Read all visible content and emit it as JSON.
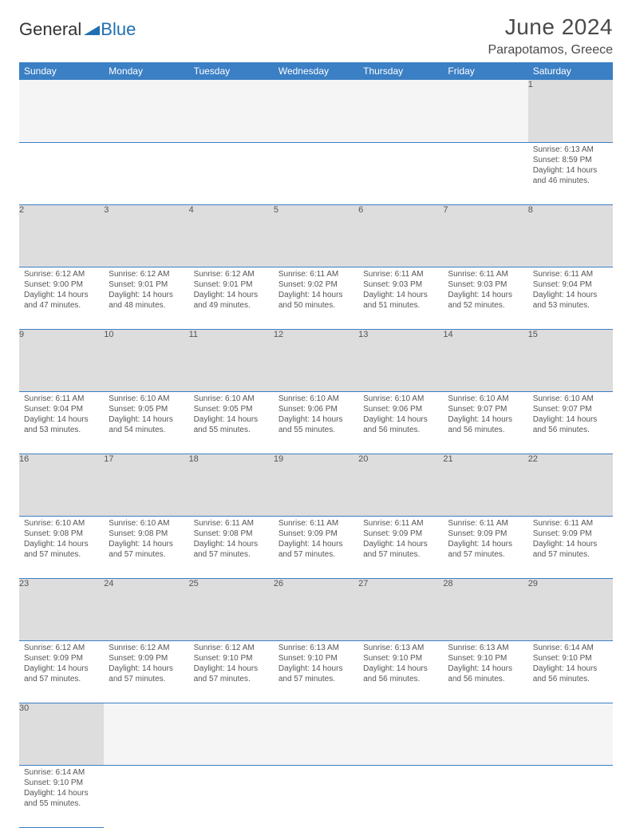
{
  "logo": {
    "text_a": "General",
    "text_b": "Blue",
    "accent_color": "#1f6fb2",
    "text_color": "#333333"
  },
  "title": {
    "month": "June 2024",
    "location": "Parapotamos, Greece"
  },
  "colors": {
    "header_bg": "#3b7fc4",
    "header_fg": "#ffffff",
    "daynum_bg": "#dddddd",
    "rule": "#3b7fc4",
    "text": "#555555"
  },
  "weekdays": [
    "Sunday",
    "Monday",
    "Tuesday",
    "Wednesday",
    "Thursday",
    "Friday",
    "Saturday"
  ],
  "weeks": [
    {
      "nums": [
        "",
        "",
        "",
        "",
        "",
        "",
        "1"
      ],
      "cells": [
        null,
        null,
        null,
        null,
        null,
        null,
        {
          "sr": "Sunrise: 6:13 AM",
          "ss": "Sunset: 8:59 PM",
          "d1": "Daylight: 14 hours",
          "d2": "and 46 minutes."
        }
      ]
    },
    {
      "nums": [
        "2",
        "3",
        "4",
        "5",
        "6",
        "7",
        "8"
      ],
      "cells": [
        {
          "sr": "Sunrise: 6:12 AM",
          "ss": "Sunset: 9:00 PM",
          "d1": "Daylight: 14 hours",
          "d2": "and 47 minutes."
        },
        {
          "sr": "Sunrise: 6:12 AM",
          "ss": "Sunset: 9:01 PM",
          "d1": "Daylight: 14 hours",
          "d2": "and 48 minutes."
        },
        {
          "sr": "Sunrise: 6:12 AM",
          "ss": "Sunset: 9:01 PM",
          "d1": "Daylight: 14 hours",
          "d2": "and 49 minutes."
        },
        {
          "sr": "Sunrise: 6:11 AM",
          "ss": "Sunset: 9:02 PM",
          "d1": "Daylight: 14 hours",
          "d2": "and 50 minutes."
        },
        {
          "sr": "Sunrise: 6:11 AM",
          "ss": "Sunset: 9:03 PM",
          "d1": "Daylight: 14 hours",
          "d2": "and 51 minutes."
        },
        {
          "sr": "Sunrise: 6:11 AM",
          "ss": "Sunset: 9:03 PM",
          "d1": "Daylight: 14 hours",
          "d2": "and 52 minutes."
        },
        {
          "sr": "Sunrise: 6:11 AM",
          "ss": "Sunset: 9:04 PM",
          "d1": "Daylight: 14 hours",
          "d2": "and 53 minutes."
        }
      ]
    },
    {
      "nums": [
        "9",
        "10",
        "11",
        "12",
        "13",
        "14",
        "15"
      ],
      "cells": [
        {
          "sr": "Sunrise: 6:11 AM",
          "ss": "Sunset: 9:04 PM",
          "d1": "Daylight: 14 hours",
          "d2": "and 53 minutes."
        },
        {
          "sr": "Sunrise: 6:10 AM",
          "ss": "Sunset: 9:05 PM",
          "d1": "Daylight: 14 hours",
          "d2": "and 54 minutes."
        },
        {
          "sr": "Sunrise: 6:10 AM",
          "ss": "Sunset: 9:05 PM",
          "d1": "Daylight: 14 hours",
          "d2": "and 55 minutes."
        },
        {
          "sr": "Sunrise: 6:10 AM",
          "ss": "Sunset: 9:06 PM",
          "d1": "Daylight: 14 hours",
          "d2": "and 55 minutes."
        },
        {
          "sr": "Sunrise: 6:10 AM",
          "ss": "Sunset: 9:06 PM",
          "d1": "Daylight: 14 hours",
          "d2": "and 56 minutes."
        },
        {
          "sr": "Sunrise: 6:10 AM",
          "ss": "Sunset: 9:07 PM",
          "d1": "Daylight: 14 hours",
          "d2": "and 56 minutes."
        },
        {
          "sr": "Sunrise: 6:10 AM",
          "ss": "Sunset: 9:07 PM",
          "d1": "Daylight: 14 hours",
          "d2": "and 56 minutes."
        }
      ]
    },
    {
      "nums": [
        "16",
        "17",
        "18",
        "19",
        "20",
        "21",
        "22"
      ],
      "cells": [
        {
          "sr": "Sunrise: 6:10 AM",
          "ss": "Sunset: 9:08 PM",
          "d1": "Daylight: 14 hours",
          "d2": "and 57 minutes."
        },
        {
          "sr": "Sunrise: 6:10 AM",
          "ss": "Sunset: 9:08 PM",
          "d1": "Daylight: 14 hours",
          "d2": "and 57 minutes."
        },
        {
          "sr": "Sunrise: 6:11 AM",
          "ss": "Sunset: 9:08 PM",
          "d1": "Daylight: 14 hours",
          "d2": "and 57 minutes."
        },
        {
          "sr": "Sunrise: 6:11 AM",
          "ss": "Sunset: 9:09 PM",
          "d1": "Daylight: 14 hours",
          "d2": "and 57 minutes."
        },
        {
          "sr": "Sunrise: 6:11 AM",
          "ss": "Sunset: 9:09 PM",
          "d1": "Daylight: 14 hours",
          "d2": "and 57 minutes."
        },
        {
          "sr": "Sunrise: 6:11 AM",
          "ss": "Sunset: 9:09 PM",
          "d1": "Daylight: 14 hours",
          "d2": "and 57 minutes."
        },
        {
          "sr": "Sunrise: 6:11 AM",
          "ss": "Sunset: 9:09 PM",
          "d1": "Daylight: 14 hours",
          "d2": "and 57 minutes."
        }
      ]
    },
    {
      "nums": [
        "23",
        "24",
        "25",
        "26",
        "27",
        "28",
        "29"
      ],
      "cells": [
        {
          "sr": "Sunrise: 6:12 AM",
          "ss": "Sunset: 9:09 PM",
          "d1": "Daylight: 14 hours",
          "d2": "and 57 minutes."
        },
        {
          "sr": "Sunrise: 6:12 AM",
          "ss": "Sunset: 9:09 PM",
          "d1": "Daylight: 14 hours",
          "d2": "and 57 minutes."
        },
        {
          "sr": "Sunrise: 6:12 AM",
          "ss": "Sunset: 9:10 PM",
          "d1": "Daylight: 14 hours",
          "d2": "and 57 minutes."
        },
        {
          "sr": "Sunrise: 6:13 AM",
          "ss": "Sunset: 9:10 PM",
          "d1": "Daylight: 14 hours",
          "d2": "and 57 minutes."
        },
        {
          "sr": "Sunrise: 6:13 AM",
          "ss": "Sunset: 9:10 PM",
          "d1": "Daylight: 14 hours",
          "d2": "and 56 minutes."
        },
        {
          "sr": "Sunrise: 6:13 AM",
          "ss": "Sunset: 9:10 PM",
          "d1": "Daylight: 14 hours",
          "d2": "and 56 minutes."
        },
        {
          "sr": "Sunrise: 6:14 AM",
          "ss": "Sunset: 9:10 PM",
          "d1": "Daylight: 14 hours",
          "d2": "and 56 minutes."
        }
      ]
    },
    {
      "nums": [
        "30",
        "",
        "",
        "",
        "",
        "",
        ""
      ],
      "cells": [
        {
          "sr": "Sunrise: 6:14 AM",
          "ss": "Sunset: 9:10 PM",
          "d1": "Daylight: 14 hours",
          "d2": "and 55 minutes."
        },
        null,
        null,
        null,
        null,
        null,
        null
      ]
    }
  ]
}
